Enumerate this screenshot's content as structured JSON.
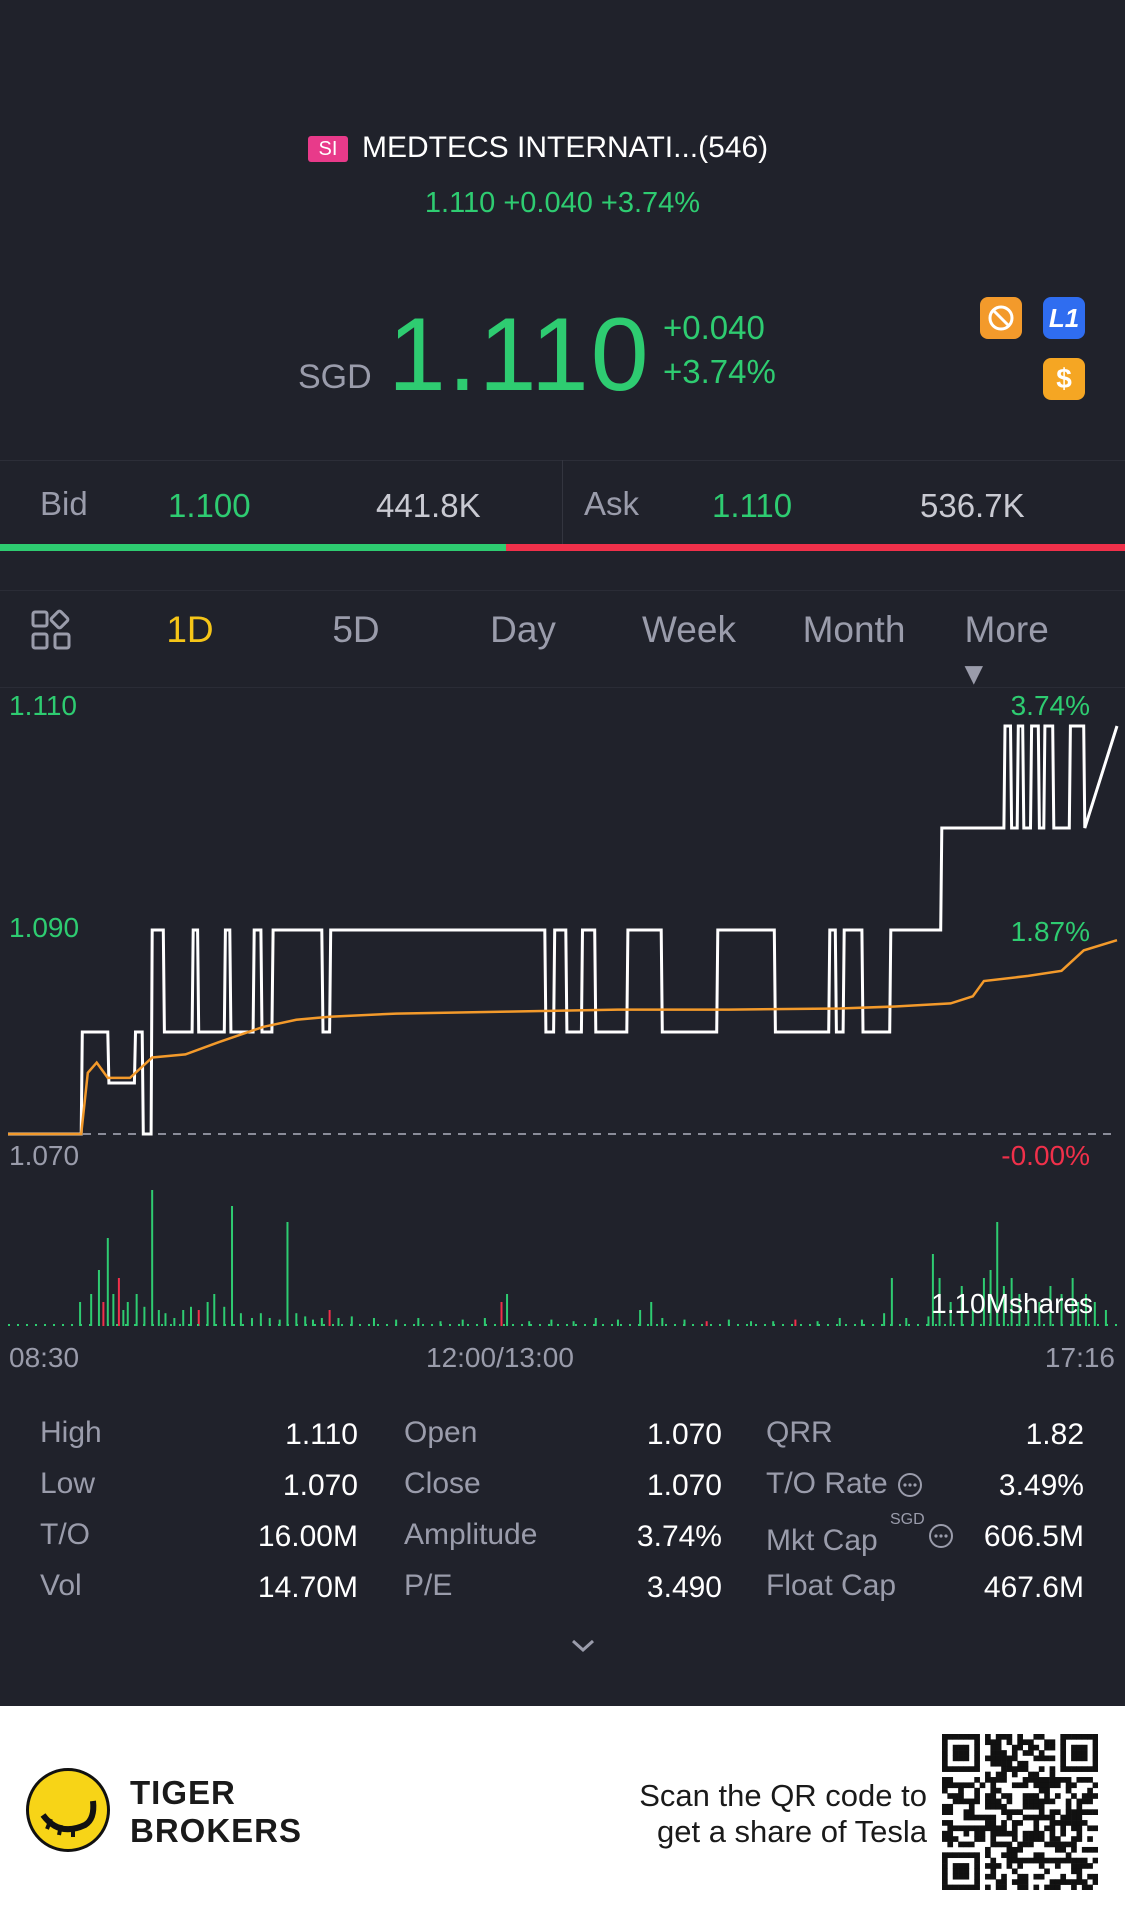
{
  "header": {
    "exchange_badge": "SI",
    "stock_name": "MEDTECS INTERNATI...(546)",
    "quote_line": "1.110 +0.040 +3.74%",
    "currency": "SGD",
    "price": "1.110",
    "change": "+0.040",
    "change_pct": "+3.74%",
    "icons": [
      {
        "name": "no-trade-icon",
        "color": "#f39a2b"
      },
      {
        "name": "level1-icon",
        "label": "L1",
        "color": "#2f6df0"
      },
      {
        "name": "dollar-icon",
        "label": "$",
        "color": "#f5a623"
      }
    ]
  },
  "bid_ask": {
    "bid_label": "Bid",
    "bid_price": "1.100",
    "bid_volume": "441.8K",
    "ask_label": "Ask",
    "ask_price": "1.110",
    "ask_volume": "536.7K",
    "bid_share": 0.45
  },
  "tabs": {
    "grid_icon": "grid-icon",
    "items": [
      "1D",
      "5D",
      "Day",
      "Week",
      "Month",
      "More ▾"
    ],
    "active": "1D"
  },
  "chart_data": {
    "type": "line",
    "y_labels": {
      "top": "1.110",
      "mid": "1.090",
      "bottom": "1.070"
    },
    "pct_labels": {
      "top": "3.74%",
      "mid": "1.87%",
      "bottom": "-0.00%"
    },
    "x_labels": [
      "08:30",
      "12:00/13:00",
      "17:16"
    ],
    "volume_label": "1.10Mshares",
    "ylim": [
      1.07,
      1.11
    ],
    "prev_close": 1.07,
    "series": [
      {
        "type": "step",
        "color": "#ffffff",
        "x": [
          0,
          0.066,
          0.067,
          0.09,
          0.091,
          0.114,
          0.115,
          0.121,
          0.122,
          0.129,
          0.13,
          0.14,
          0.141,
          0.166,
          0.167,
          0.171,
          0.172,
          0.195,
          0.196,
          0.2,
          0.201,
          0.221,
          0.222,
          0.228,
          0.229,
          0.238,
          0.239,
          0.283,
          0.284,
          0.29,
          0.291,
          0.484,
          0.485,
          0.492,
          0.493,
          0.503,
          0.504,
          0.517,
          0.518,
          0.529,
          0.53,
          0.558,
          0.559,
          0.589,
          0.59,
          0.639,
          0.64,
          0.691,
          0.692,
          0.74,
          0.741,
          0.746,
          0.747,
          0.753,
          0.754,
          0.77,
          0.771,
          0.795,
          0.796,
          0.841,
          0.842,
          0.898,
          0.899,
          0.904,
          0.905,
          0.91,
          0.911,
          0.915,
          0.916,
          0.922,
          0.923,
          0.929,
          0.93,
          0.934,
          0.935,
          0.942,
          0.943,
          0.957,
          0.958,
          0.97,
          0.971,
          1.0
        ],
        "y": [
          1.07,
          1.07,
          1.08,
          1.08,
          1.075,
          1.075,
          1.08,
          1.08,
          1.07,
          1.07,
          1.09,
          1.09,
          1.08,
          1.08,
          1.09,
          1.09,
          1.08,
          1.08,
          1.09,
          1.09,
          1.08,
          1.08,
          1.09,
          1.09,
          1.08,
          1.08,
          1.09,
          1.09,
          1.08,
          1.08,
          1.09,
          1.09,
          1.08,
          1.08,
          1.09,
          1.09,
          1.08,
          1.08,
          1.09,
          1.09,
          1.08,
          1.08,
          1.09,
          1.09,
          1.08,
          1.08,
          1.09,
          1.09,
          1.08,
          1.08,
          1.09,
          1.09,
          1.08,
          1.08,
          1.09,
          1.09,
          1.08,
          1.08,
          1.09,
          1.09,
          1.1,
          1.1,
          1.11,
          1.11,
          1.1,
          1.1,
          1.11,
          1.11,
          1.1,
          1.1,
          1.11,
          1.11,
          1.1,
          1.1,
          1.11,
          1.11,
          1.1,
          1.1,
          1.11,
          1.11,
          1.1,
          1.11
        ]
      },
      {
        "type": "line",
        "color": "#f39a2b",
        "x": [
          0,
          0.066,
          0.072,
          0.08,
          0.09,
          0.11,
          0.13,
          0.16,
          0.19,
          0.23,
          0.26,
          0.29,
          0.35,
          0.45,
          0.55,
          0.65,
          0.75,
          0.8,
          0.85,
          0.87,
          0.88,
          0.92,
          0.95,
          0.97,
          1.0
        ],
        "y": [
          1.07,
          1.07,
          1.076,
          1.077,
          1.0755,
          1.0755,
          1.0775,
          1.0778,
          1.079,
          1.0805,
          1.0812,
          1.0815,
          1.0818,
          1.082,
          1.0822,
          1.0822,
          1.0823,
          1.0825,
          1.0828,
          1.0835,
          1.085,
          1.0855,
          1.086,
          1.088,
          1.089
        ]
      }
    ],
    "volume_series": {
      "x": [
        0.065,
        0.075,
        0.082,
        0.086,
        0.09,
        0.095,
        0.1,
        0.104,
        0.108,
        0.116,
        0.123,
        0.13,
        0.136,
        0.142,
        0.15,
        0.158,
        0.165,
        0.172,
        0.18,
        0.186,
        0.195,
        0.202,
        0.21,
        0.22,
        0.228,
        0.236,
        0.245,
        0.252,
        0.26,
        0.268,
        0.275,
        0.283,
        0.29,
        0.298,
        0.31,
        0.33,
        0.35,
        0.37,
        0.39,
        0.41,
        0.43,
        0.445,
        0.45,
        0.47,
        0.49,
        0.51,
        0.53,
        0.55,
        0.57,
        0.58,
        0.59,
        0.61,
        0.63,
        0.65,
        0.67,
        0.69,
        0.71,
        0.73,
        0.75,
        0.77,
        0.79,
        0.797,
        0.81,
        0.83,
        0.834,
        0.84,
        0.85,
        0.86,
        0.87,
        0.88,
        0.886,
        0.892,
        0.898,
        0.905,
        0.912,
        0.92,
        0.93,
        0.94,
        0.95,
        0.96,
        0.965,
        0.972,
        0.98,
        0.99
      ],
      "v": [
        0.15,
        0.2,
        0.35,
        0.15,
        0.55,
        0.2,
        0.3,
        0.1,
        0.15,
        0.2,
        0.12,
        0.85,
        0.1,
        0.08,
        0.05,
        0.1,
        0.12,
        0.1,
        0.15,
        0.2,
        0.12,
        0.75,
        0.08,
        0.05,
        0.08,
        0.05,
        0.04,
        0.65,
        0.08,
        0.06,
        0.04,
        0.05,
        0.1,
        0.05,
        0.06,
        0.05,
        0.04,
        0.05,
        0.03,
        0.04,
        0.05,
        0.15,
        0.2,
        0.03,
        0.04,
        0.03,
        0.05,
        0.04,
        0.1,
        0.15,
        0.05,
        0.04,
        0.03,
        0.04,
        0.03,
        0.03,
        0.04,
        0.03,
        0.05,
        0.04,
        0.08,
        0.3,
        0.05,
        0.06,
        0.45,
        0.3,
        0.15,
        0.25,
        0.1,
        0.3,
        0.35,
        0.65,
        0.25,
        0.3,
        0.2,
        0.1,
        0.15,
        0.25,
        0.2,
        0.3,
        0.15,
        0.2,
        0.15,
        0.1
      ],
      "colors": [
        "g",
        "g",
        "g",
        "r",
        "g",
        "g",
        "r",
        "g",
        "g",
        "g",
        "g",
        "g",
        "g",
        "g",
        "g",
        "g",
        "g",
        "r",
        "g",
        "g",
        "g",
        "g",
        "g",
        "g",
        "g",
        "g",
        "g",
        "g",
        "g",
        "g",
        "g",
        "g",
        "r",
        "g",
        "g",
        "g",
        "g",
        "g",
        "g",
        "g",
        "g",
        "r",
        "g",
        "g",
        "g",
        "g",
        "g",
        "g",
        "g",
        "g",
        "g",
        "g",
        "r",
        "g",
        "g",
        "g",
        "r",
        "g",
        "g",
        "g",
        "g",
        "g",
        "g",
        "g",
        "g",
        "g",
        "g",
        "g",
        "g",
        "g",
        "g",
        "g",
        "g",
        "g",
        "g",
        "g",
        "g",
        "g",
        "g",
        "g",
        "g",
        "g",
        "g",
        "g"
      ]
    }
  },
  "stats": {
    "col1": [
      {
        "label": "High",
        "value": "1.110"
      },
      {
        "label": "Low",
        "value": "1.070"
      },
      {
        "label": "T/O",
        "value": "16.00M"
      },
      {
        "label": "Vol",
        "value": "14.70M"
      }
    ],
    "col2": [
      {
        "label": "Open",
        "value": "1.070"
      },
      {
        "label": "Close",
        "value": "1.070"
      },
      {
        "label": "Amplitude",
        "value": "3.74%"
      },
      {
        "label": "P/E",
        "value": "3.490"
      }
    ],
    "col3": [
      {
        "label": "QRR",
        "value": "1.82"
      },
      {
        "label": "T/O Rate",
        "value": "3.49%"
      },
      {
        "label": "Mkt Cap",
        "value": "606.5M",
        "sup": "SGD"
      },
      {
        "label": "Float Cap",
        "value": "467.6M"
      }
    ]
  },
  "footer": {
    "brand_line1": "TIGER",
    "brand_line2": "BROKERS",
    "scan_line1": "Scan the QR code to",
    "scan_line2": "get a share of Tesla"
  }
}
